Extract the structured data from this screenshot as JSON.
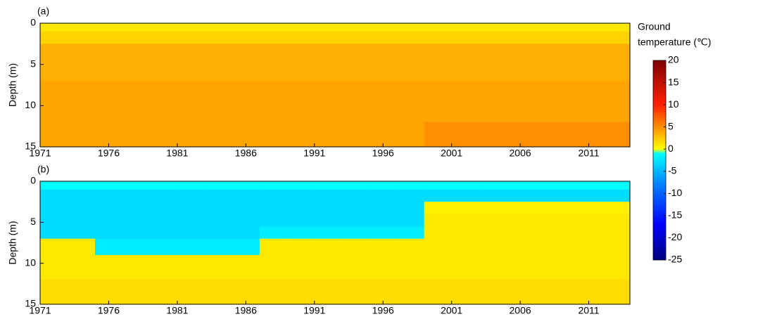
{
  "chart_data": [
    {
      "type": "heatmap",
      "panel_label": "(a)",
      "ylabel": "Depth (m)",
      "x_edges": [
        1971,
        1973,
        1975,
        1977,
        1979,
        1981,
        1983,
        1985,
        1987,
        1989,
        1991,
        1993,
        1995,
        1997,
        1999,
        2001,
        2003,
        2005,
        2007,
        2009,
        2011,
        2013,
        2014
      ],
      "y_edges": [
        0,
        1,
        2.5,
        4,
        5.5,
        7,
        9,
        12,
        15
      ],
      "xlim": [
        1971,
        2014
      ],
      "ylim": [
        0,
        15
      ],
      "y_inverted": true,
      "xticks": [
        1971,
        1976,
        1981,
        1986,
        1991,
        1996,
        2001,
        2006,
        2011
      ],
      "yticks": [
        0,
        5,
        10,
        15
      ],
      "values": [
        [
          1,
          1,
          1,
          1,
          1,
          1,
          1,
          1,
          1,
          1,
          1,
          1,
          1,
          1,
          1,
          1,
          1,
          1,
          1,
          1,
          1,
          1
        ],
        [
          2,
          2,
          2,
          2,
          2,
          2,
          2,
          2,
          2,
          2,
          2,
          2,
          2,
          2,
          2,
          2,
          2,
          2,
          2,
          2,
          2,
          2
        ],
        [
          3.5,
          3.5,
          3.5,
          3.5,
          3.5,
          3.5,
          3.5,
          3.5,
          3.5,
          3.5,
          3.5,
          3.5,
          3.5,
          3.5,
          3.5,
          3.5,
          3.5,
          3.5,
          3.5,
          3.5,
          3.5,
          3.5
        ],
        [
          3.5,
          3.5,
          3.5,
          3.5,
          3.5,
          3.5,
          3.5,
          3.5,
          3.5,
          3.5,
          3.5,
          3.5,
          3.5,
          3.5,
          3.5,
          3.5,
          3.5,
          3.5,
          3.5,
          3.5,
          3.5,
          3.5
        ],
        [
          3.5,
          3.5,
          3.5,
          3.5,
          3.5,
          3.5,
          3.5,
          3.5,
          3.5,
          3.5,
          3.5,
          3.5,
          3.5,
          3.5,
          3.5,
          3.5,
          3.5,
          3.5,
          3.5,
          3.5,
          3.5,
          3.5
        ],
        [
          4,
          4,
          4,
          4,
          4,
          4,
          4,
          4,
          4,
          4,
          4,
          4,
          4,
          4,
          4,
          4,
          4,
          4,
          4,
          4,
          4,
          4
        ],
        [
          4,
          4,
          4,
          4,
          4,
          4,
          4,
          4,
          4,
          4,
          4,
          4,
          4,
          4,
          4,
          4,
          4,
          4,
          4,
          4,
          4,
          4
        ],
        [
          4,
          4,
          4,
          4,
          4,
          4,
          4,
          4,
          4,
          4,
          4,
          4,
          4,
          4,
          5,
          5,
          5,
          5,
          5,
          5,
          5,
          5
        ]
      ]
    },
    {
      "type": "heatmap",
      "panel_label": "(b)",
      "ylabel": "Depth (m)",
      "x_edges": [
        1971,
        1973,
        1975,
        1977,
        1979,
        1981,
        1983,
        1985,
        1987,
        1989,
        1991,
        1993,
        1995,
        1997,
        1999,
        2001,
        2003,
        2005,
        2007,
        2009,
        2011,
        2013,
        2014
      ],
      "y_edges": [
        0,
        1,
        2.5,
        4,
        5.5,
        7,
        9,
        12,
        15
      ],
      "xlim": [
        1971,
        2014
      ],
      "ylim": [
        0,
        15
      ],
      "y_inverted": true,
      "xticks": [
        1971,
        1976,
        1981,
        1986,
        1991,
        1996,
        2001,
        2006,
        2011
      ],
      "yticks": [
        0,
        5,
        10,
        15
      ],
      "values": [
        [
          -1,
          -1,
          -1,
          -1,
          -1,
          -1,
          -1,
          -1,
          -1,
          -1,
          -1,
          -1,
          -1,
          -1,
          -1,
          -1,
          -1,
          -1,
          -1,
          -1,
          -1,
          -1
        ],
        [
          -3,
          -3,
          -3,
          -3,
          -3,
          -3,
          -3,
          -3,
          -3,
          -3,
          -3,
          -3,
          -3,
          -3,
          -3,
          -3,
          -3,
          -3,
          -3,
          -3,
          -3,
          -3
        ],
        [
          -3,
          -3,
          -3,
          -3,
          -3,
          -3,
          -3,
          -3,
          -3,
          -3,
          -3,
          -3,
          -3,
          -3,
          0.5,
          0.5,
          0.5,
          0.5,
          0.5,
          0.5,
          0.5,
          0.5
        ],
        [
          -3,
          -3,
          -3,
          -3,
          -3,
          -3,
          -3,
          -3,
          -3,
          -3,
          -3,
          -3,
          -3,
          -3,
          1,
          1,
          1,
          1,
          1,
          1,
          1,
          1
        ],
        [
          -3,
          -3,
          -3,
          -3,
          -3,
          -3,
          -3,
          -3,
          -2,
          -2,
          -2,
          -2,
          -2,
          -2,
          1,
          1,
          1,
          1,
          1,
          1,
          1,
          1
        ],
        [
          1,
          1,
          -2,
          -2,
          -2,
          -2,
          -2,
          -2,
          1,
          1,
          1,
          1,
          1,
          1,
          1,
          1,
          1,
          1,
          1,
          1,
          1,
          1
        ],
        [
          1,
          1,
          1,
          1,
          1,
          1,
          1,
          1,
          1,
          1,
          1,
          1,
          1,
          1,
          1,
          1,
          1,
          1,
          1,
          1,
          1,
          1
        ],
        [
          1.5,
          1.5,
          1.5,
          1.5,
          1.5,
          1.5,
          1.5,
          1.5,
          1.5,
          1.5,
          1.5,
          1.5,
          1.5,
          1.5,
          1.5,
          1.5,
          1.5,
          1.5,
          1.5,
          1.5,
          1.5,
          1.5
        ]
      ]
    }
  ],
  "colorbar": {
    "label_lines": [
      "Ground",
      "temperature (℃)"
    ],
    "clim": [
      -25,
      20
    ],
    "ticks": [
      20,
      15,
      10,
      5,
      0,
      -5,
      -10,
      -15,
      -20,
      -25
    ],
    "colormap": [
      {
        "value": -25,
        "color": "#00007f"
      },
      {
        "value": -17,
        "color": "#0000ff"
      },
      {
        "value": -8,
        "color": "#0080ff"
      },
      {
        "value": -1,
        "color": "#00ffff"
      },
      {
        "value": 0,
        "color": "#ffff00"
      },
      {
        "value": 4,
        "color": "#ffa500"
      },
      {
        "value": 10,
        "color": "#ff2000"
      },
      {
        "value": 20,
        "color": "#800000"
      }
    ]
  }
}
